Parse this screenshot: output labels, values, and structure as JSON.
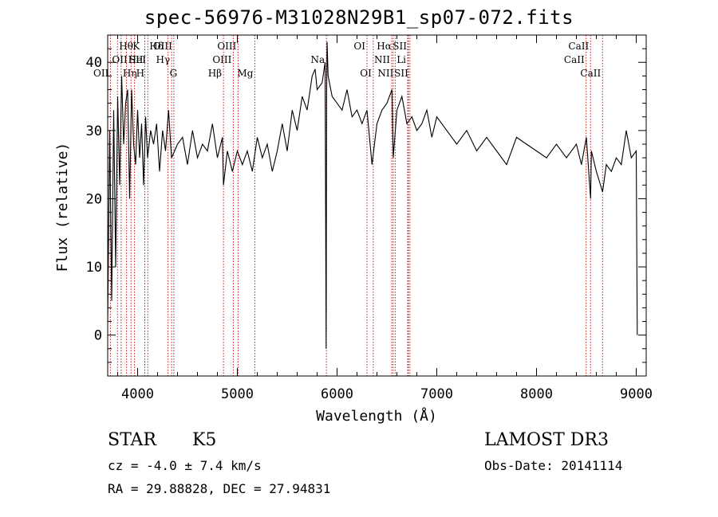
{
  "chart_data": {
    "type": "line",
    "title": "spec-56976-M31028N29B1_sp07-072.fits",
    "xlabel": "Wavelength (Å)",
    "ylabel": "Flux (relative)",
    "xlim": [
      3700,
      9100
    ],
    "ylim": [
      -6,
      44
    ],
    "xticks": [
      {
        "v": 4000,
        "label": "4000"
      },
      {
        "v": 5000,
        "label": "5000"
      },
      {
        "v": 6000,
        "label": "6000"
      },
      {
        "v": 7000,
        "label": "7000"
      },
      {
        "v": 8000,
        "label": "8000"
      },
      {
        "v": 9000,
        "label": "9000"
      }
    ],
    "yticks": [
      {
        "v": 0,
        "label": "0"
      },
      {
        "v": 10,
        "label": "10"
      },
      {
        "v": 20,
        "label": "20"
      },
      {
        "v": 30,
        "label": "30"
      },
      {
        "v": 40,
        "label": "40"
      }
    ],
    "series": [
      {
        "name": "flux",
        "x": [
          3700,
          3720,
          3740,
          3760,
          3780,
          3800,
          3820,
          3840,
          3860,
          3880,
          3900,
          3920,
          3940,
          3960,
          3980,
          4000,
          4020,
          4040,
          4060,
          4080,
          4100,
          4130,
          4160,
          4190,
          4220,
          4250,
          4280,
          4310,
          4340,
          4370,
          4400,
          4450,
          4500,
          4550,
          4600,
          4650,
          4700,
          4750,
          4800,
          4850,
          4861,
          4900,
          4950,
          5000,
          5050,
          5100,
          5150,
          5200,
          5250,
          5300,
          5350,
          5400,
          5450,
          5500,
          5550,
          5600,
          5650,
          5700,
          5750,
          5780,
          5800,
          5850,
          5880,
          5890,
          5895,
          5900,
          5910,
          5950,
          6000,
          6050,
          6100,
          6150,
          6200,
          6250,
          6300,
          6350,
          6400,
          6450,
          6500,
          6550,
          6563,
          6600,
          6650,
          6700,
          6750,
          6800,
          6850,
          6900,
          6950,
          7000,
          7100,
          7200,
          7300,
          7400,
          7500,
          7600,
          7700,
          7800,
          7900,
          8000,
          8100,
          8200,
          8300,
          8400,
          8450,
          8500,
          8542,
          8550,
          8600,
          8662,
          8700,
          8750,
          8800,
          8850,
          8900,
          8950,
          9000,
          9010
        ],
        "y": [
          2,
          30,
          5,
          33,
          10,
          35,
          22,
          38,
          28,
          34,
          36,
          20,
          36,
          28,
          25,
          33,
          26,
          31,
          22,
          32,
          26,
          30,
          28,
          31,
          24,
          30,
          27,
          33,
          26,
          27,
          28,
          29,
          25,
          30,
          26,
          28,
          27,
          31,
          26,
          29,
          22,
          27,
          24,
          27,
          25,
          27,
          24,
          29,
          26,
          28,
          24,
          27,
          31,
          27,
          33,
          30,
          35,
          33,
          38,
          39,
          36,
          37,
          40,
          -2,
          35,
          43,
          38,
          35,
          34,
          33,
          36,
          32,
          33,
          31,
          33,
          25,
          31,
          33,
          34,
          36,
          26,
          33,
          35,
          31,
          32,
          30,
          31,
          33,
          29,
          32,
          30,
          28,
          30,
          27,
          29,
          27,
          25,
          29,
          28,
          27,
          26,
          28,
          26,
          28,
          25,
          29,
          20,
          27,
          24,
          21,
          25,
          24,
          26,
          25,
          30,
          26,
          27,
          0
        ]
      }
    ],
    "lines": [
      {
        "label": "Hθ",
        "x": 3798,
        "row": 0,
        "side": "right"
      },
      {
        "label": "OII",
        "x": 3727,
        "row": 1,
        "side": "right"
      },
      {
        "label": "OII",
        "x": 3727,
        "row": 2,
        "side": "left"
      },
      {
        "label": "Hη",
        "x": 3835,
        "row": 2,
        "side": "right"
      },
      {
        "label": "HeI",
        "x": 3889,
        "row": 1,
        "side": "right"
      },
      {
        "label": "K",
        "x": 3934,
        "row": 0,
        "side": "right"
      },
      {
        "label": "H",
        "x": 3969,
        "row": 2,
        "side": "right"
      },
      {
        "label": "SII",
        "x": 4072,
        "row": 1,
        "side": "left"
      },
      {
        "label": "Hδ",
        "x": 4102,
        "row": 0,
        "side": "right"
      },
      {
        "label": "G",
        "x": 4305,
        "row": 2,
        "side": "right"
      },
      {
        "label": "OIII",
        "x": 4363,
        "row": 0,
        "side": "left"
      },
      {
        "label": "Hγ",
        "x": 4341,
        "row": 1,
        "side": "left"
      },
      {
        "label": "Hβ",
        "x": 4861,
        "row": 2,
        "side": "left"
      },
      {
        "label": "OIII",
        "x": 4959,
        "row": 1,
        "side": "left"
      },
      {
        "label": "OIII",
        "x": 5007,
        "row": 0,
        "side": "left"
      },
      {
        "label": "Mg",
        "x": 5175,
        "row": 2,
        "side": "left"
      },
      {
        "label": "Na",
        "x": 5893,
        "row": 1,
        "side": "left"
      },
      {
        "label": "OI",
        "x": 6300,
        "row": 0,
        "side": "left"
      },
      {
        "label": "OI",
        "x": 6363,
        "row": 2,
        "side": "left"
      },
      {
        "label": "NII",
        "x": 6548,
        "row": 1,
        "side": "left"
      },
      {
        "label": "Hα",
        "x": 6563,
        "row": 0,
        "side": "left"
      },
      {
        "label": "NII",
        "x": 6583,
        "row": 2,
        "side": "left"
      },
      {
        "label": "SII",
        "x": 6716,
        "row": 0,
        "side": "left"
      },
      {
        "label": "Li",
        "x": 6708,
        "row": 1,
        "side": "left"
      },
      {
        "label": "SII",
        "x": 6731,
        "row": 2,
        "side": "left"
      },
      {
        "label": "CaII",
        "x": 8498,
        "row": 1,
        "side": "left"
      },
      {
        "label": "CaII",
        "x": 8542,
        "row": 0,
        "side": "left"
      },
      {
        "label": "CaII",
        "x": 8662,
        "row": 2,
        "side": "left"
      }
    ]
  },
  "info": {
    "class": "STAR",
    "subclass": "K5",
    "survey": "LAMOST DR3",
    "cz": "cz = -4.0 ± 7.4 km/s",
    "obs_date": "Obs-Date: 20141114",
    "coords": "RA =  29.88828, DEC =  27.94831"
  },
  "colors": {
    "axis": "#000000",
    "line_marker": "#c00000"
  }
}
